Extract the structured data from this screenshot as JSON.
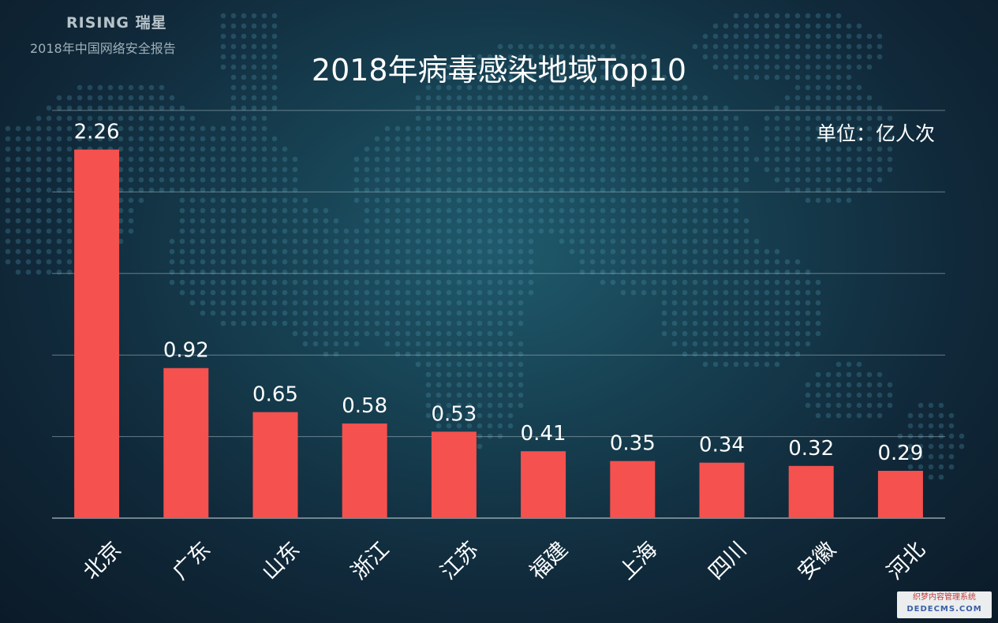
{
  "header": {
    "brand": "RISING 瑞星",
    "subtitle": "2018年中国网络安全报告"
  },
  "chart_data": {
    "type": "bar",
    "title": "2018年病毒感染地域Top10",
    "unit_label": "单位：亿人次",
    "categories": [
      "北京",
      "广东",
      "山东",
      "浙江",
      "江苏",
      "福建",
      "上海",
      "四川",
      "安徽",
      "河北"
    ],
    "values": [
      2.26,
      0.92,
      0.65,
      0.58,
      0.53,
      0.41,
      0.35,
      0.34,
      0.32,
      0.29
    ],
    "value_labels": [
      "2.26",
      "0.92",
      "0.65",
      "0.58",
      "0.53",
      "0.41",
      "0.35",
      "0.34",
      "0.32",
      "0.29"
    ],
    "ylim": [
      0,
      2.5
    ],
    "gridlines": [
      0,
      0.5,
      1.0,
      1.5,
      2.0,
      2.5
    ],
    "grid": true,
    "xlabel": "",
    "ylabel": "",
    "bar_color": "#f5514e",
    "grid_color": "#9fb1ba"
  },
  "watermark": {
    "line1": "织梦内容管理系统",
    "line2": "DEDECMS.COM"
  }
}
